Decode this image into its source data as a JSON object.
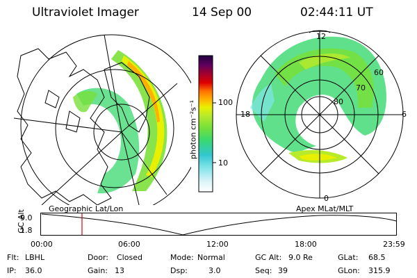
{
  "header": {
    "instrument": "Ultraviolet Imager",
    "date": "14 Sep 00",
    "time": "02:44:11 UT"
  },
  "colorbar": {
    "unit_label": "photon cm⁻²s⁻¹",
    "ticks": [
      "100",
      "10"
    ],
    "scale": "log",
    "colors": [
      "#ffffff",
      "#d8f3f8",
      "#7fe4ea",
      "#32c6d0",
      "#39d86e",
      "#77e03a",
      "#b8ea2c",
      "#e8f000",
      "#ffb000",
      "#ff7000",
      "#e00000",
      "#a00030",
      "#600060",
      "#200040"
    ]
  },
  "panels": {
    "geographic_label": "Geographic Lat/Lon",
    "polar_label": "Apex MLat/MLT",
    "polar_mlt_labels": {
      "top": "12",
      "left": "18",
      "right": "6",
      "bottom": "0"
    },
    "polar_lat_labels": [
      "80",
      "70",
      "60"
    ]
  },
  "altitude_plot": {
    "ylabel": "GC Alt",
    "yticks": [
      "9.0",
      "1.8"
    ],
    "xticks": [
      "00:00",
      "06:00",
      "12:00",
      "18:00",
      "23:59"
    ],
    "marker_time": "02:44",
    "marker_color": "#e00000"
  },
  "info": {
    "filter": {
      "label": "Flt:",
      "value": "LBHL"
    },
    "ip": {
      "label": "IP:",
      "value": "36.0"
    },
    "door": {
      "label": "Door:",
      "value": "Closed"
    },
    "gain": {
      "label": "Gain:",
      "value": "13"
    },
    "mode": {
      "label": "Mode:",
      "value": "Normal"
    },
    "dsp": {
      "label": "Dsp:",
      "value": "3.0"
    },
    "gc_alt": {
      "label": "GC Alt:",
      "value": "9.0 Re"
    },
    "seq": {
      "label": "Seq:",
      "value": "39"
    },
    "glat": {
      "label": "GLat:",
      "value": "68.5"
    },
    "glon": {
      "label": "GLon:",
      "value": "315.9"
    }
  }
}
